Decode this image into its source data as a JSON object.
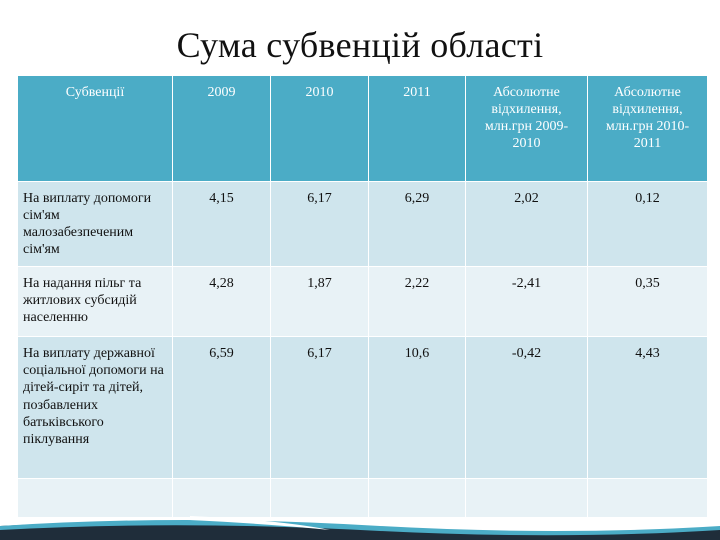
{
  "title": "Сума субвенцій області",
  "table": {
    "headers": [
      "Субвенції",
      "2009",
      "2010",
      "2011",
      "Абсолютне відхилення, млн.грн 2009-2010",
      "Абсолютне відхилення, млн.грн 2010-2011"
    ],
    "rows": [
      {
        "label": "На виплату допомоги сім'ям малозабезпеченим сім'ям",
        "values": [
          "4,15",
          "6,17",
          "6,29",
          "2,02",
          "0,12"
        ]
      },
      {
        "label": "На надання пільг та житлових субсидій населенню",
        "values": [
          "4,28",
          "1,87",
          "2,22",
          "-2,41",
          "0,35"
        ]
      },
      {
        "label": "На виплату державної соціальної допомоги на дітей-сиріт та дітей, позбавлених батьківського піклування",
        "values": [
          "6,59",
          "6,17",
          "10,6",
          "-0,42",
          "4,43"
        ]
      }
    ]
  },
  "colors": {
    "header_bg": "#4bacc6",
    "row_dark": "#cfe5ed",
    "row_light": "#e8f2f6",
    "accent_dark": "#1f2d3a"
  }
}
